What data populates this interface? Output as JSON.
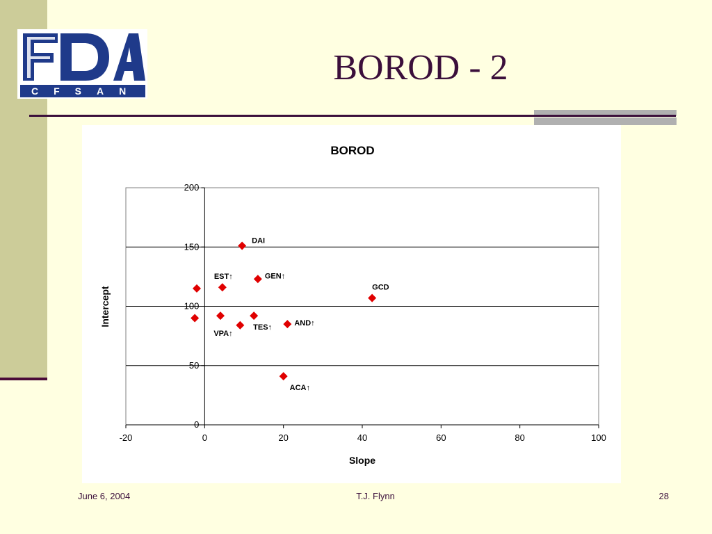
{
  "slide": {
    "title": "BOROD - 2",
    "footer_date": "June 6, 2004",
    "footer_author": "T.J. Flynn",
    "page_number": "28"
  },
  "logo": {
    "top": "FDA",
    "bottom": "CFSAN",
    "color": "#1F3A8A"
  },
  "colors": {
    "marker": "#E00000",
    "title": "#3B0F3B",
    "sidebar": "#CCCC99"
  },
  "chart_data": {
    "type": "scatter",
    "title": "BOROD",
    "xlabel": "Slope",
    "ylabel": "Intercept",
    "xlim": [
      -20,
      100
    ],
    "ylim": [
      0,
      200
    ],
    "xticks": [
      "-20",
      "0",
      "20",
      "40",
      "60",
      "80",
      "100"
    ],
    "yticks": [
      "0",
      "50",
      "100",
      "150",
      "200"
    ],
    "grid": "horizontal",
    "series": [
      {
        "points": [
          {
            "x": 9.5,
            "y": 151,
            "label": "DAI"
          },
          {
            "x": 4.5,
            "y": 116,
            "label": "EST↑"
          },
          {
            "x": 13.5,
            "y": 123,
            "label": "GEN↑"
          },
          {
            "x": 42.5,
            "y": 107,
            "label": "GCD"
          },
          {
            "x": -2,
            "y": 115,
            "label": ""
          },
          {
            "x": -2.5,
            "y": 90,
            "label": ""
          },
          {
            "x": 4,
            "y": 92,
            "label": ""
          },
          {
            "x": 9,
            "y": 84,
            "label": "VPA↑"
          },
          {
            "x": 12.5,
            "y": 92,
            "label": "TES↑"
          },
          {
            "x": 21,
            "y": 85,
            "label": "AND↑"
          },
          {
            "x": 20,
            "y": 41,
            "label": "ACA↑"
          }
        ]
      }
    ]
  }
}
